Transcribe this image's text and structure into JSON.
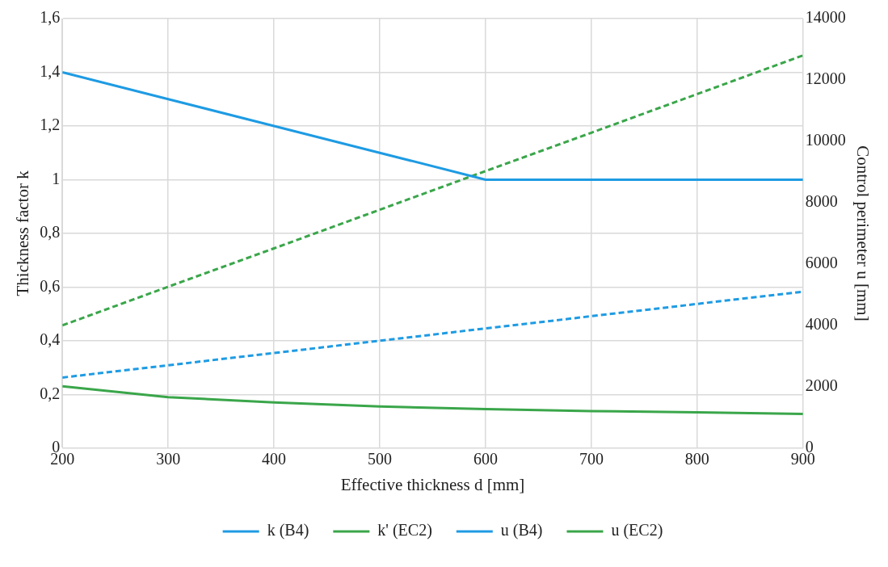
{
  "chart_data": {
    "type": "line",
    "xlabel": "Effective thickness d [mm]",
    "ylabel": "Thickness factor k",
    "y2label": "Control perimeter u [mm]",
    "x": [
      200,
      300,
      400,
      500,
      600,
      700,
      800,
      900
    ],
    "series": [
      {
        "name": "k (B4)",
        "color": "#1e9be3",
        "values": [
          1.4,
          1.3,
          1.2,
          1.1,
          1.0,
          1.0,
          1.0,
          1.0
        ],
        "line_style": "solid"
      },
      {
        "name": "k' (EC2)",
        "color": "#3aa64a",
        "values": [
          0.23,
          0.19,
          0.17,
          0.155,
          0.145,
          0.138,
          0.133,
          0.127
        ],
        "line_style": "solid"
      },
      {
        "name": "u (B4)",
        "color": "#1e9be3",
        "values": [
          2300,
          2700,
          3100,
          3500,
          3900,
          4300,
          4700,
          5100
        ],
        "line_style": "dashed",
        "axis": "y2"
      },
      {
        "name": "u (EC2)",
        "color": "#3aa64a",
        "values": [
          4000,
          5260,
          6510,
          7770,
          9030,
          10280,
          11540,
          12800
        ],
        "line_style": "dashed",
        "axis": "y2"
      }
    ],
    "xlim": [
      200,
      900
    ],
    "xticks": [
      200,
      300,
      400,
      500,
      600,
      700,
      800,
      900
    ],
    "ylim": [
      0,
      1.6
    ],
    "yticks": [
      0,
      {
        "value": 0.2,
        "label": "0,2"
      },
      {
        "value": 0.4,
        "label": "0,4"
      },
      {
        "value": 0.6,
        "label": "0,6"
      },
      {
        "value": 0.8,
        "label": "0,8"
      },
      1,
      {
        "value": 1.2,
        "label": "1,2"
      },
      {
        "value": 1.4,
        "label": "1,4"
      },
      {
        "value": 1.6,
        "label": "1,6"
      }
    ],
    "y2lim": [
      0,
      14000
    ],
    "y2ticks": [
      0,
      2000,
      4000,
      6000,
      8000,
      10000,
      12000,
      14000
    ],
    "grid": true,
    "legend": "bottom",
    "marker": "none"
  }
}
